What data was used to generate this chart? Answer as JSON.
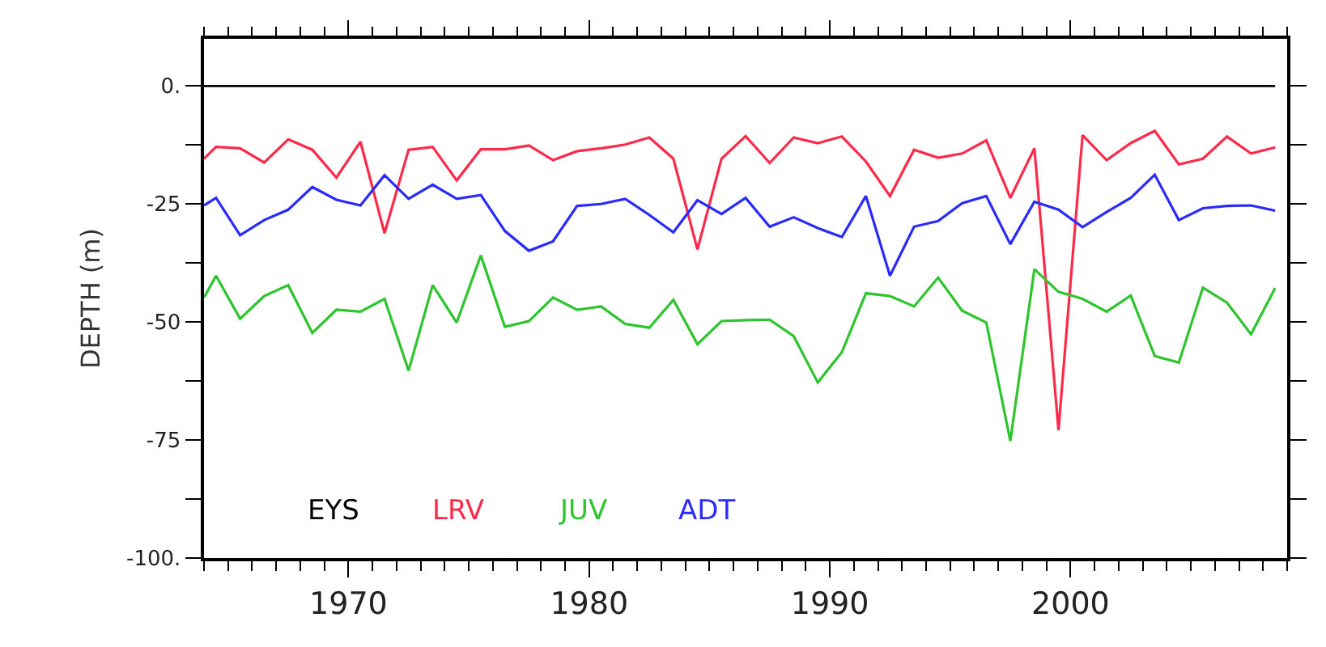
{
  "chart_data": {
    "type": "line",
    "ylabel": "DEPTH (m)",
    "x": [
      1964,
      1964.5,
      1965.5,
      1966.5,
      1967.5,
      1968.5,
      1969.5,
      1970.5,
      1971.5,
      1972.5,
      1973.5,
      1974.5,
      1975.5,
      1976.5,
      1977.5,
      1978.5,
      1979.5,
      1980.5,
      1981.5,
      1982.5,
      1983.5,
      1984.5,
      1985.5,
      1986.5,
      1987.5,
      1988.5,
      1989.5,
      1990.5,
      1991.5,
      1992.5,
      1993.5,
      1994.5,
      1995.5,
      1996.5,
      1997.5,
      1998.5,
      1999.5,
      2000.5,
      2001.5,
      2002.5,
      2003.5,
      2004.5,
      2005.5,
      2006.5,
      2007.5,
      2008.5
    ],
    "series": [
      {
        "name": "EYS",
        "color": "#000000",
        "values": [
          null,
          null,
          null,
          null,
          null,
          null,
          null,
          null,
          null,
          null,
          null,
          null,
          null,
          null,
          null,
          null,
          null,
          null,
          null,
          null,
          null,
          null,
          null,
          null,
          null,
          null,
          null,
          null,
          null,
          null,
          null,
          null,
          null,
          null,
          null,
          null,
          null,
          null,
          null,
          null,
          null,
          null,
          null,
          null,
          null,
          null
        ]
      },
      {
        "name": "LRV",
        "color": "#ff2a4a",
        "values": [
          -15.4,
          -12.9,
          -13.2,
          -16.2,
          -11.3,
          -13.5,
          -19.4,
          -11.8,
          -31.2,
          -13.5,
          -12.9,
          -20.0,
          -13.4,
          -13.4,
          -12.6,
          -15.7,
          -13.8,
          -13.2,
          -12.4,
          -10.9,
          -15.4,
          -34.6,
          -15.4,
          -10.6,
          -16.3,
          -10.9,
          -12.1,
          -10.7,
          -16.0,
          -23.3,
          -13.5,
          -15.2,
          -14.3,
          -11.5,
          -23.7,
          -13.2,
          -72.9,
          -10.4,
          -15.7,
          -12.1,
          -9.5,
          -16.6,
          -15.4,
          -10.7,
          -14.3,
          -13.0
        ]
      },
      {
        "name": "JUV",
        "color": "#2ec42e",
        "values": [
          -44.8,
          -40.2,
          -49.3,
          -44.5,
          -42.2,
          -52.3,
          -47.4,
          -47.8,
          -45.1,
          -60.3,
          -42.2,
          -50.1,
          -35.9,
          -51.0,
          -49.8,
          -44.8,
          -47.4,
          -46.7,
          -50.4,
          -51.2,
          -45.3,
          -54.7,
          -49.8,
          -49.6,
          -49.5,
          -53.0,
          -62.8,
          -56.4,
          -43.9,
          -44.5,
          -46.7,
          -40.6,
          -47.6,
          -50.1,
          -75.2,
          -38.8,
          -43.6,
          -45.1,
          -47.8,
          -44.4,
          -57.2,
          -58.6,
          -42.7,
          -45.9,
          -52.6,
          -42.8
        ]
      },
      {
        "name": "ADT",
        "color": "#2a2aff",
        "values": [
          -25.3,
          -23.7,
          -31.6,
          -28.4,
          -26.2,
          -21.4,
          -24.1,
          -25.3,
          -18.9,
          -23.9,
          -20.9,
          -23.9,
          -23.1,
          -30.7,
          -34.9,
          -32.9,
          -25.4,
          -25.0,
          -23.9,
          -27.3,
          -31.0,
          -24.2,
          -27.1,
          -23.7,
          -29.8,
          -27.8,
          -30.1,
          -32.0,
          -23.3,
          -40.2,
          -29.8,
          -28.6,
          -24.8,
          -23.3,
          -33.5,
          -24.5,
          -26.2,
          -29.9,
          -26.7,
          -23.7,
          -18.8,
          -28.4,
          -25.9,
          -25.4,
          -25.3,
          -26.4
        ]
      }
    ],
    "xlim": [
      1964,
      2009
    ],
    "xticks": [
      1970,
      1980,
      1990,
      2000,
      {
        "value": 1964,
        "label": null
      },
      {
        "value": 1965,
        "label": null
      },
      {
        "value": 1966,
        "label": null
      },
      {
        "value": 1967,
        "label": null
      },
      {
        "value": 1968,
        "label": null
      },
      {
        "value": 1969,
        "label": null
      },
      {
        "value": 1971,
        "label": null
      },
      {
        "value": 1972,
        "label": null
      },
      {
        "value": 1973,
        "label": null
      },
      {
        "value": 1974,
        "label": null
      },
      {
        "value": 1975,
        "label": null
      },
      {
        "value": 1976,
        "label": null
      },
      {
        "value": 1977,
        "label": null
      },
      {
        "value": 1978,
        "label": null
      },
      {
        "value": 1979,
        "label": null
      },
      {
        "value": 1981,
        "label": null
      },
      {
        "value": 1982,
        "label": null
      },
      {
        "value": 1983,
        "label": null
      },
      {
        "value": 1984,
        "label": null
      },
      {
        "value": 1985,
        "label": null
      },
      {
        "value": 1986,
        "label": null
      },
      {
        "value": 1987,
        "label": null
      },
      {
        "value": 1988,
        "label": null
      },
      {
        "value": 1989,
        "label": null
      },
      {
        "value": 1991,
        "label": null
      },
      {
        "value": 1992,
        "label": null
      },
      {
        "value": 1993,
        "label": null
      },
      {
        "value": 1994,
        "label": null
      },
      {
        "value": 1995,
        "label": null
      },
      {
        "value": 1996,
        "label": null
      },
      {
        "value": 1997,
        "label": null
      },
      {
        "value": 1998,
        "label": null
      },
      {
        "value": 1999,
        "label": null
      },
      {
        "value": 2001,
        "label": null
      },
      {
        "value": 2002,
        "label": null
      },
      {
        "value": 2003,
        "label": null
      },
      {
        "value": 2004,
        "label": null
      },
      {
        "value": 2005,
        "label": null
      },
      {
        "value": 2006,
        "label": null
      },
      {
        "value": 2007,
        "label": null
      },
      {
        "value": 2008,
        "label": null
      },
      {
        "value": 2009,
        "label": null
      }
    ],
    "ylim": [
      -100,
      10
    ],
    "yticks": [
      {
        "value": 0,
        "label": "0."
      },
      -25,
      -50,
      -75,
      {
        "value": -100,
        "label": "-100."
      },
      {
        "value": -12.5,
        "label": null
      },
      {
        "value": -37.5,
        "label": null
      },
      {
        "value": -62.5,
        "label": null
      },
      {
        "value": -87.5,
        "label": null
      }
    ],
    "ref_lines": [
      {
        "axis": "y",
        "value": 0,
        "color": "#000000",
        "line_style": "solid"
      }
    ],
    "marker": "none",
    "line_style": "solid"
  }
}
